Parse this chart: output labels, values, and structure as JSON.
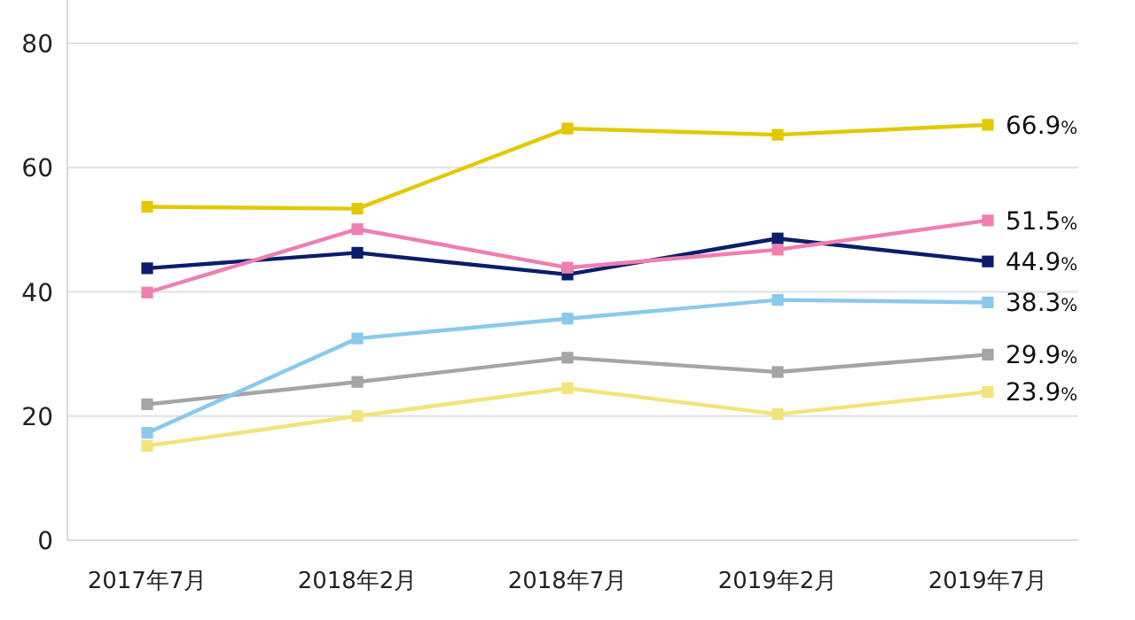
{
  "chart_data": {
    "type": "line",
    "categories": [
      "2017年7月",
      "2018年2月",
      "2018年7月",
      "2019年2月",
      "2019年7月"
    ],
    "ylim": [
      0,
      87
    ],
    "yticks": [
      0,
      20,
      40,
      60,
      80
    ],
    "grid": "y",
    "marker": "square",
    "line_style": "solid",
    "series": [
      {
        "color": "#e3c800",
        "values": [
          53.7,
          53.4,
          66.3,
          65.3,
          66.9
        ],
        "value_labels": [
          null,
          null,
          null,
          null,
          "66.9%"
        ]
      },
      {
        "color": "#ee7fb0",
        "values": [
          39.9,
          50.1,
          43.9,
          46.8,
          51.5
        ],
        "value_labels": [
          null,
          null,
          null,
          null,
          "51.5%"
        ]
      },
      {
        "color": "#0b1d6b",
        "values": [
          43.8,
          46.3,
          42.8,
          48.6,
          44.9
        ],
        "value_labels": [
          null,
          null,
          null,
          null,
          "44.9%"
        ]
      },
      {
        "color": "#89c9ee",
        "values": [
          17.3,
          32.5,
          35.7,
          38.7,
          38.3
        ],
        "value_labels": [
          null,
          null,
          null,
          null,
          "38.3%"
        ]
      },
      {
        "color": "#a5a5a5",
        "values": [
          21.9,
          25.5,
          29.4,
          27.1,
          29.9
        ],
        "value_labels": [
          null,
          null,
          null,
          null,
          "29.9%"
        ]
      },
      {
        "color": "#f2e37c",
        "values": [
          15.2,
          20.0,
          24.5,
          20.3,
          23.9
        ],
        "value_labels": [
          null,
          null,
          null,
          null,
          "23.9%"
        ]
      }
    ]
  }
}
